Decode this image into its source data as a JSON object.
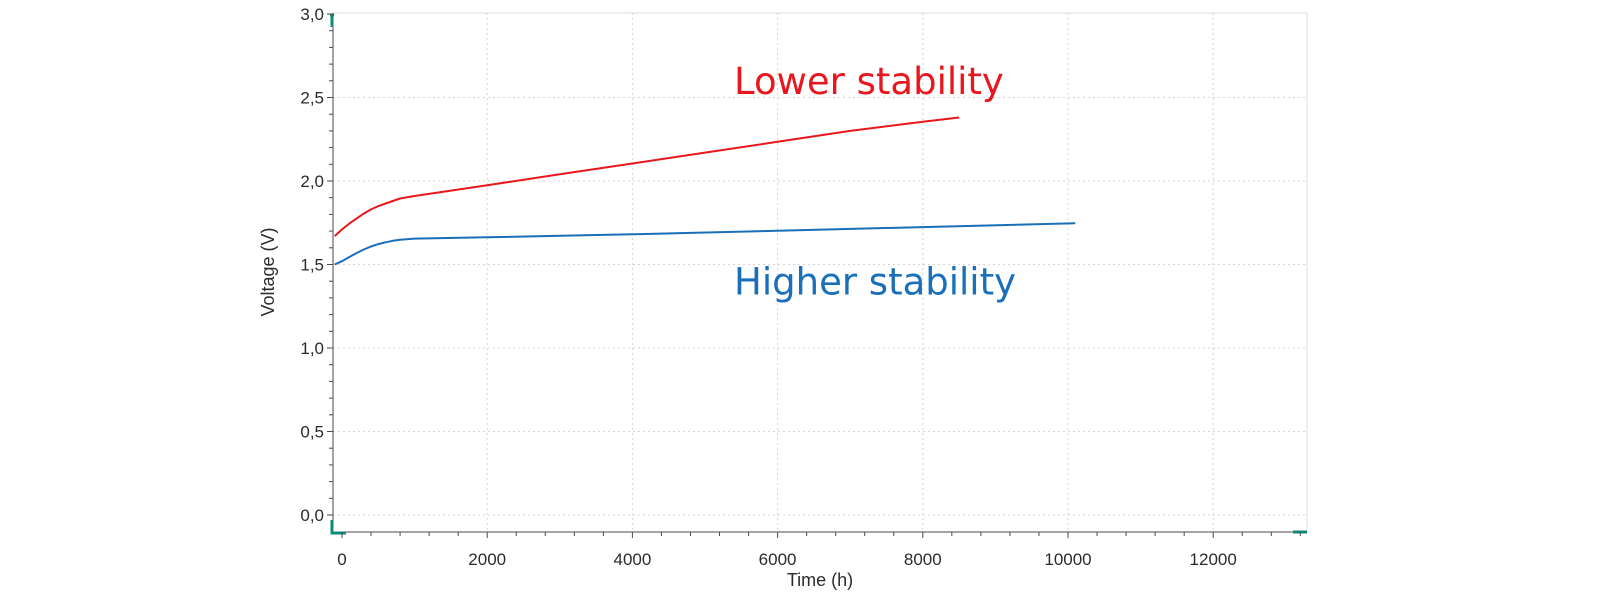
{
  "chart_data": {
    "type": "line",
    "title": "",
    "xlabel": "Time (h)",
    "ylabel": "Voltage (V)",
    "xlim": [
      -150,
      13500
    ],
    "ylim": [
      -0.1,
      3.0
    ],
    "x_ticks": [
      0,
      2000,
      4000,
      6000,
      8000,
      10000,
      12000
    ],
    "x_tick_labels": [
      "0",
      "2000",
      "4000",
      "6000",
      "8000",
      "10000",
      "12000"
    ],
    "y_ticks": [
      0.0,
      0.5,
      1.0,
      1.5,
      2.0,
      2.5,
      3.0
    ],
    "y_tick_labels": [
      "0,0",
      "0,5",
      "1,0",
      "1,5",
      "2,0",
      "2,5",
      "3,0"
    ],
    "grid": true,
    "legend": "none",
    "series": [
      {
        "color": "#e8171e",
        "x": [
          -100,
          0,
          100,
          200,
          300,
          400,
          500,
          600,
          700,
          800,
          1000,
          2000,
          3000,
          4000,
          5000,
          6000,
          7000,
          8000,
          8500
        ],
        "y": [
          1.67,
          1.71,
          1.745,
          1.775,
          1.805,
          1.83,
          1.85,
          1.865,
          1.88,
          1.895,
          1.91,
          1.975,
          2.04,
          2.105,
          2.17,
          2.235,
          2.3,
          2.355,
          2.38
        ]
      },
      {
        "color": "#1a6fba",
        "x": [
          -100,
          0,
          100,
          200,
          300,
          400,
          500,
          600,
          700,
          800,
          1000,
          2000,
          4000,
          6000,
          8000,
          10100
        ],
        "y": [
          1.5,
          1.52,
          1.545,
          1.568,
          1.59,
          1.608,
          1.622,
          1.633,
          1.642,
          1.648,
          1.655,
          1.663,
          1.681,
          1.702,
          1.724,
          1.747
        ]
      }
    ],
    "annotations": [
      {
        "text": "Lower stability",
        "color": "#e8171e",
        "x": 5400,
        "y": 2.52
      },
      {
        "text": "Higher stability",
        "color": "#1a6fba",
        "x": 5400,
        "y": 1.32
      }
    ]
  }
}
